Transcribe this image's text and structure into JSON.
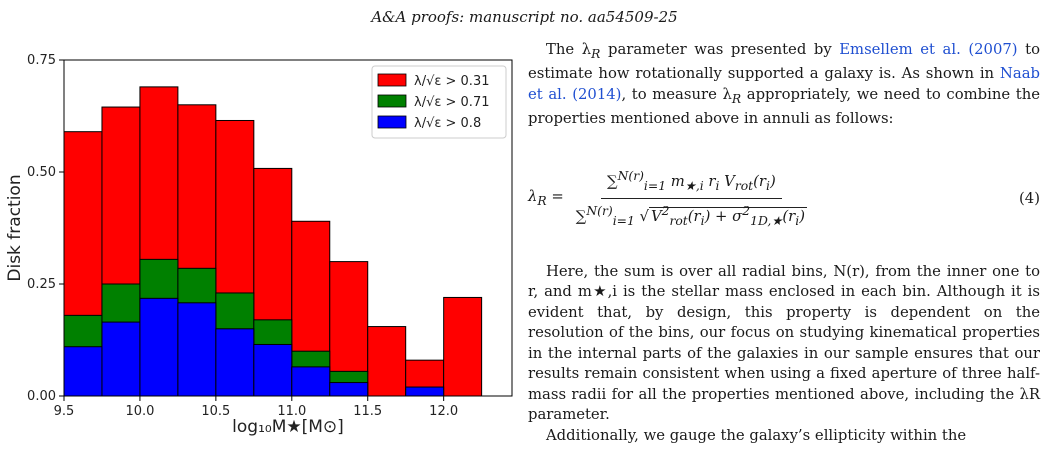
{
  "header": {
    "text": "A&A proofs: manuscript no. aa54509-25"
  },
  "figure": {
    "xlabel": "log₁₀M★[M⊙]",
    "ylabel": "Disk fraction"
  },
  "chart_data": {
    "type": "bar",
    "stacked_overlay": true,
    "bin_edges": [
      9.5,
      9.75,
      10.0,
      10.25,
      10.5,
      10.75,
      11.0,
      11.25,
      11.5,
      11.75,
      12.0,
      12.25
    ],
    "xlim": [
      9.5,
      12.45
    ],
    "ylim": [
      0,
      0.75
    ],
    "xticks": [
      "9.5",
      "10.0",
      "10.5",
      "11.0",
      "11.5",
      "12.0"
    ],
    "xtick_values": [
      9.5,
      10.0,
      10.5,
      11.0,
      11.5,
      12.0
    ],
    "yticks": [
      "0.00",
      "0.25",
      "0.50",
      "0.75"
    ],
    "ytick_values": [
      0.0,
      0.25,
      0.5,
      0.75
    ],
    "xlabel": "log10 M★ [M⊙]",
    "ylabel": "Disk fraction",
    "grid": false,
    "legend_position": "top-right",
    "series": [
      {
        "name": "λ/√ε > 0.31",
        "color": "#ff0000",
        "values": [
          0.59,
          0.645,
          0.69,
          0.65,
          0.615,
          0.508,
          0.39,
          0.3,
          0.155,
          0.08,
          0.22
        ]
      },
      {
        "name": "λ/√ε > 0.71",
        "color": "#008000",
        "values": [
          0.18,
          0.25,
          0.305,
          0.285,
          0.23,
          0.17,
          0.1,
          0.055,
          0.0,
          0.0,
          0.0
        ]
      },
      {
        "name": "λ/√ε > 0.8",
        "color": "#0000ff",
        "values": [
          0.11,
          0.165,
          0.218,
          0.208,
          0.15,
          0.115,
          0.065,
          0.03,
          0.0,
          0.02,
          0.0
        ]
      }
    ]
  },
  "body": {
    "p1_a": "The λ",
    "p1_sub": "R",
    "p1_b": " parameter was presented by ",
    "ref1_name": "Emsellem et al.",
    "ref1_year": "2007",
    "p1_c": " to estimate how rotationally supported a galaxy is. As shown in ",
    "ref2_name": "Naab et al.",
    "ref2_year": "2014",
    "p1_d": ", to measure λ",
    "p1_e": " appropriately, we need to combine the properties mentioned above in annuli as follows:",
    "eq_number": "(4)",
    "p2": "Here, the sum is over all radial bins, N(r), from the inner one to r, and m★,i is the stellar mass enclosed in each bin. Although it is evident that, by design, this property is dependent on the resolution of the bins, our focus on studying kinematical properties in the internal parts of the galaxies in our sample ensures that our results remain consistent when using a fixed aperture of three half-mass radii for all the properties mentioned above, including the λR parameter.",
    "p3": "Additionally, we gauge the galaxy’s ellipticity within the"
  }
}
